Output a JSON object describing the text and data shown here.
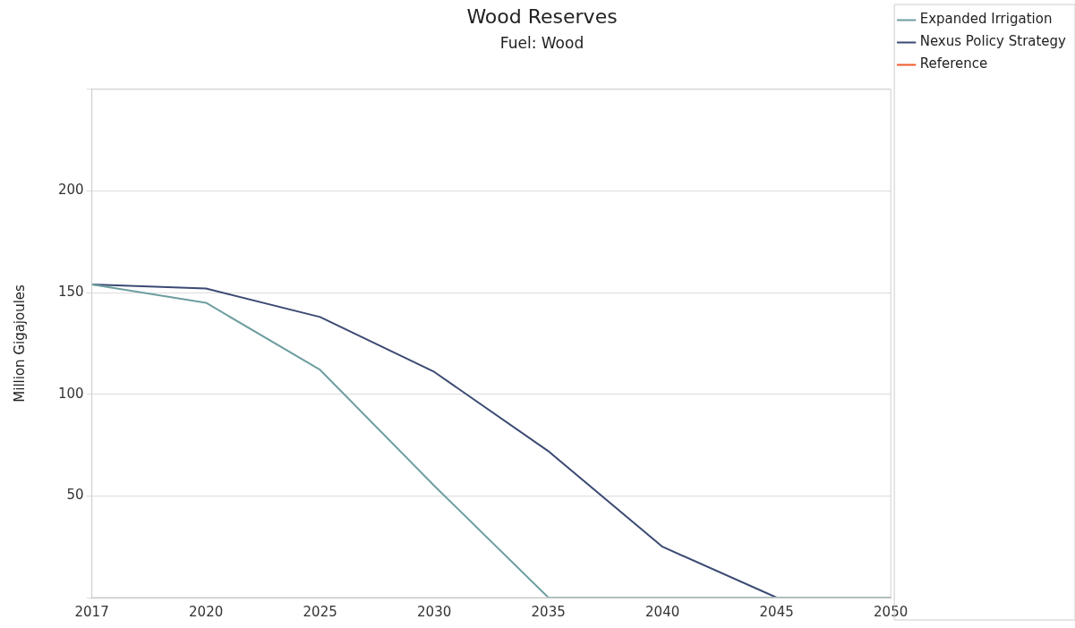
{
  "chart_data": {
    "type": "line",
    "title": "Wood Reserves",
    "subtitle": "Fuel: Wood",
    "ylabel": "Million Gigajoules",
    "categories": [
      "2017",
      "2020",
      "2025",
      "2030",
      "2035",
      "2040",
      "2045",
      "2050"
    ],
    "series": [
      {
        "name": "Expanded Irrigation",
        "color": "#6e9ea0",
        "values": [
          154,
          145,
          112,
          55,
          0,
          0,
          0,
          0
        ]
      },
      {
        "name": "Nexus Policy Strategy",
        "color": "#3b4a73",
        "values": [
          154,
          152,
          138,
          111,
          72,
          25,
          0,
          0
        ]
      },
      {
        "name": "Reference",
        "color": "#f05a28",
        "values": [
          null,
          null,
          null,
          null,
          null,
          null,
          null,
          null
        ]
      }
    ],
    "ylim": [
      0,
      250
    ],
    "yticks": [
      {
        "value": 0,
        "label": null
      },
      50,
      100,
      150,
      200,
      {
        "value": 250,
        "label": null
      }
    ],
    "grid": "y",
    "legend": "top right",
    "marker": "none",
    "line_style": "solid"
  }
}
